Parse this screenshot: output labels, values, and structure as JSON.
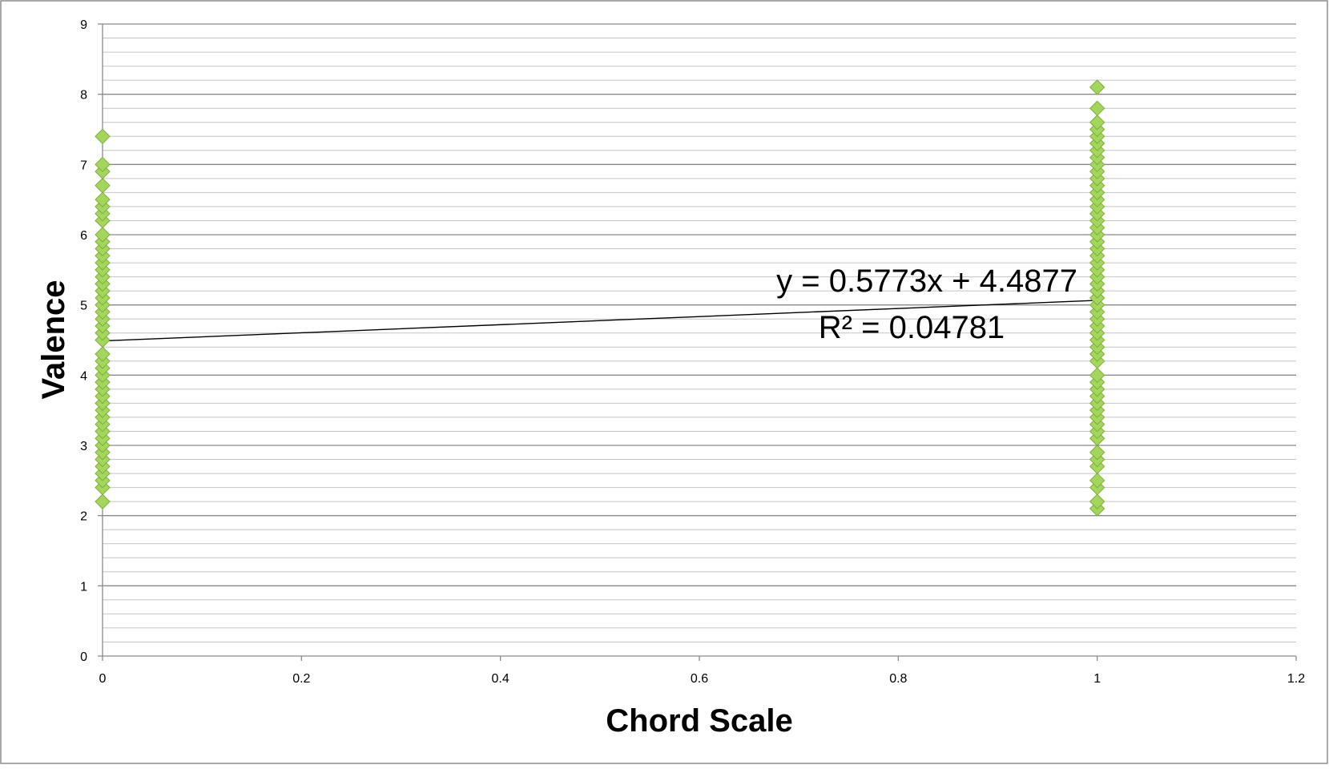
{
  "chart_data": {
    "type": "scatter",
    "title": "",
    "xlabel": "Chord Scale",
    "ylabel": "Valence",
    "xlim": [
      0,
      1.2
    ],
    "ylim": [
      0,
      9
    ],
    "x_ticks": [
      "0",
      "0.2",
      "0.4",
      "0.6",
      "0.8",
      "1",
      "1.2"
    ],
    "y_ticks": [
      "0",
      "1",
      "2",
      "3",
      "4",
      "5",
      "6",
      "7",
      "8",
      "9"
    ],
    "grid": {
      "major": true,
      "minor": true,
      "minor_step": 0.2
    },
    "marker": {
      "shape": "diamond",
      "color": "#a4d65e",
      "edge_color": "#7fae3a"
    },
    "series": [
      {
        "points": [
          [
            0,
            2.2
          ],
          [
            0,
            2.4
          ],
          [
            0,
            2.5
          ],
          [
            0,
            2.6
          ],
          [
            0,
            2.7
          ],
          [
            0,
            2.8
          ],
          [
            0,
            2.9
          ],
          [
            0,
            3.0
          ],
          [
            0,
            3.1
          ],
          [
            0,
            3.2
          ],
          [
            0,
            3.3
          ],
          [
            0,
            3.4
          ],
          [
            0,
            3.5
          ],
          [
            0,
            3.6
          ],
          [
            0,
            3.7
          ],
          [
            0,
            3.8
          ],
          [
            0,
            3.9
          ],
          [
            0,
            4.0
          ],
          [
            0,
            4.1
          ],
          [
            0,
            4.2
          ],
          [
            0,
            4.3
          ],
          [
            0,
            4.5
          ],
          [
            0,
            4.6
          ],
          [
            0,
            4.7
          ],
          [
            0,
            4.8
          ],
          [
            0,
            4.9
          ],
          [
            0,
            5.0
          ],
          [
            0,
            5.1
          ],
          [
            0,
            5.2
          ],
          [
            0,
            5.3
          ],
          [
            0,
            5.4
          ],
          [
            0,
            5.5
          ],
          [
            0,
            5.6
          ],
          [
            0,
            5.7
          ],
          [
            0,
            5.8
          ],
          [
            0,
            5.9
          ],
          [
            0,
            6.0
          ],
          [
            0,
            6.2
          ],
          [
            0,
            6.3
          ],
          [
            0,
            6.4
          ],
          [
            0,
            6.5
          ],
          [
            0,
            6.7
          ],
          [
            0,
            6.9
          ],
          [
            0,
            7.0
          ],
          [
            0,
            7.4
          ],
          [
            1,
            2.1
          ],
          [
            1,
            2.2
          ],
          [
            1,
            2.4
          ],
          [
            1,
            2.5
          ],
          [
            1,
            2.7
          ],
          [
            1,
            2.8
          ],
          [
            1,
            2.9
          ],
          [
            1,
            3.1
          ],
          [
            1,
            3.2
          ],
          [
            1,
            3.3
          ],
          [
            1,
            3.4
          ],
          [
            1,
            3.5
          ],
          [
            1,
            3.6
          ],
          [
            1,
            3.7
          ],
          [
            1,
            3.8
          ],
          [
            1,
            3.9
          ],
          [
            1,
            4.0
          ],
          [
            1,
            4.2
          ],
          [
            1,
            4.3
          ],
          [
            1,
            4.4
          ],
          [
            1,
            4.5
          ],
          [
            1,
            4.6
          ],
          [
            1,
            4.7
          ],
          [
            1,
            4.8
          ],
          [
            1,
            4.9
          ],
          [
            1,
            5.0
          ],
          [
            1,
            5.1
          ],
          [
            1,
            5.2
          ],
          [
            1,
            5.3
          ],
          [
            1,
            5.4
          ],
          [
            1,
            5.5
          ],
          [
            1,
            5.6
          ],
          [
            1,
            5.7
          ],
          [
            1,
            5.8
          ],
          [
            1,
            5.9
          ],
          [
            1,
            6.0
          ],
          [
            1,
            6.1
          ],
          [
            1,
            6.2
          ],
          [
            1,
            6.3
          ],
          [
            1,
            6.4
          ],
          [
            1,
            6.5
          ],
          [
            1,
            6.6
          ],
          [
            1,
            6.7
          ],
          [
            1,
            6.8
          ],
          [
            1,
            6.9
          ],
          [
            1,
            7.0
          ],
          [
            1,
            7.1
          ],
          [
            1,
            7.2
          ],
          [
            1,
            7.3
          ],
          [
            1,
            7.4
          ],
          [
            1,
            7.5
          ],
          [
            1,
            7.6
          ],
          [
            1,
            7.8
          ],
          [
            1,
            8.1
          ]
        ]
      }
    ],
    "trendline": {
      "type": "linear",
      "slope": 0.5773,
      "intercept": 4.4877,
      "x_range": [
        0,
        1
      ],
      "equation_label": "y = 0.5773x + 4.4877",
      "r2_label": "R² = 0.04781"
    }
  }
}
